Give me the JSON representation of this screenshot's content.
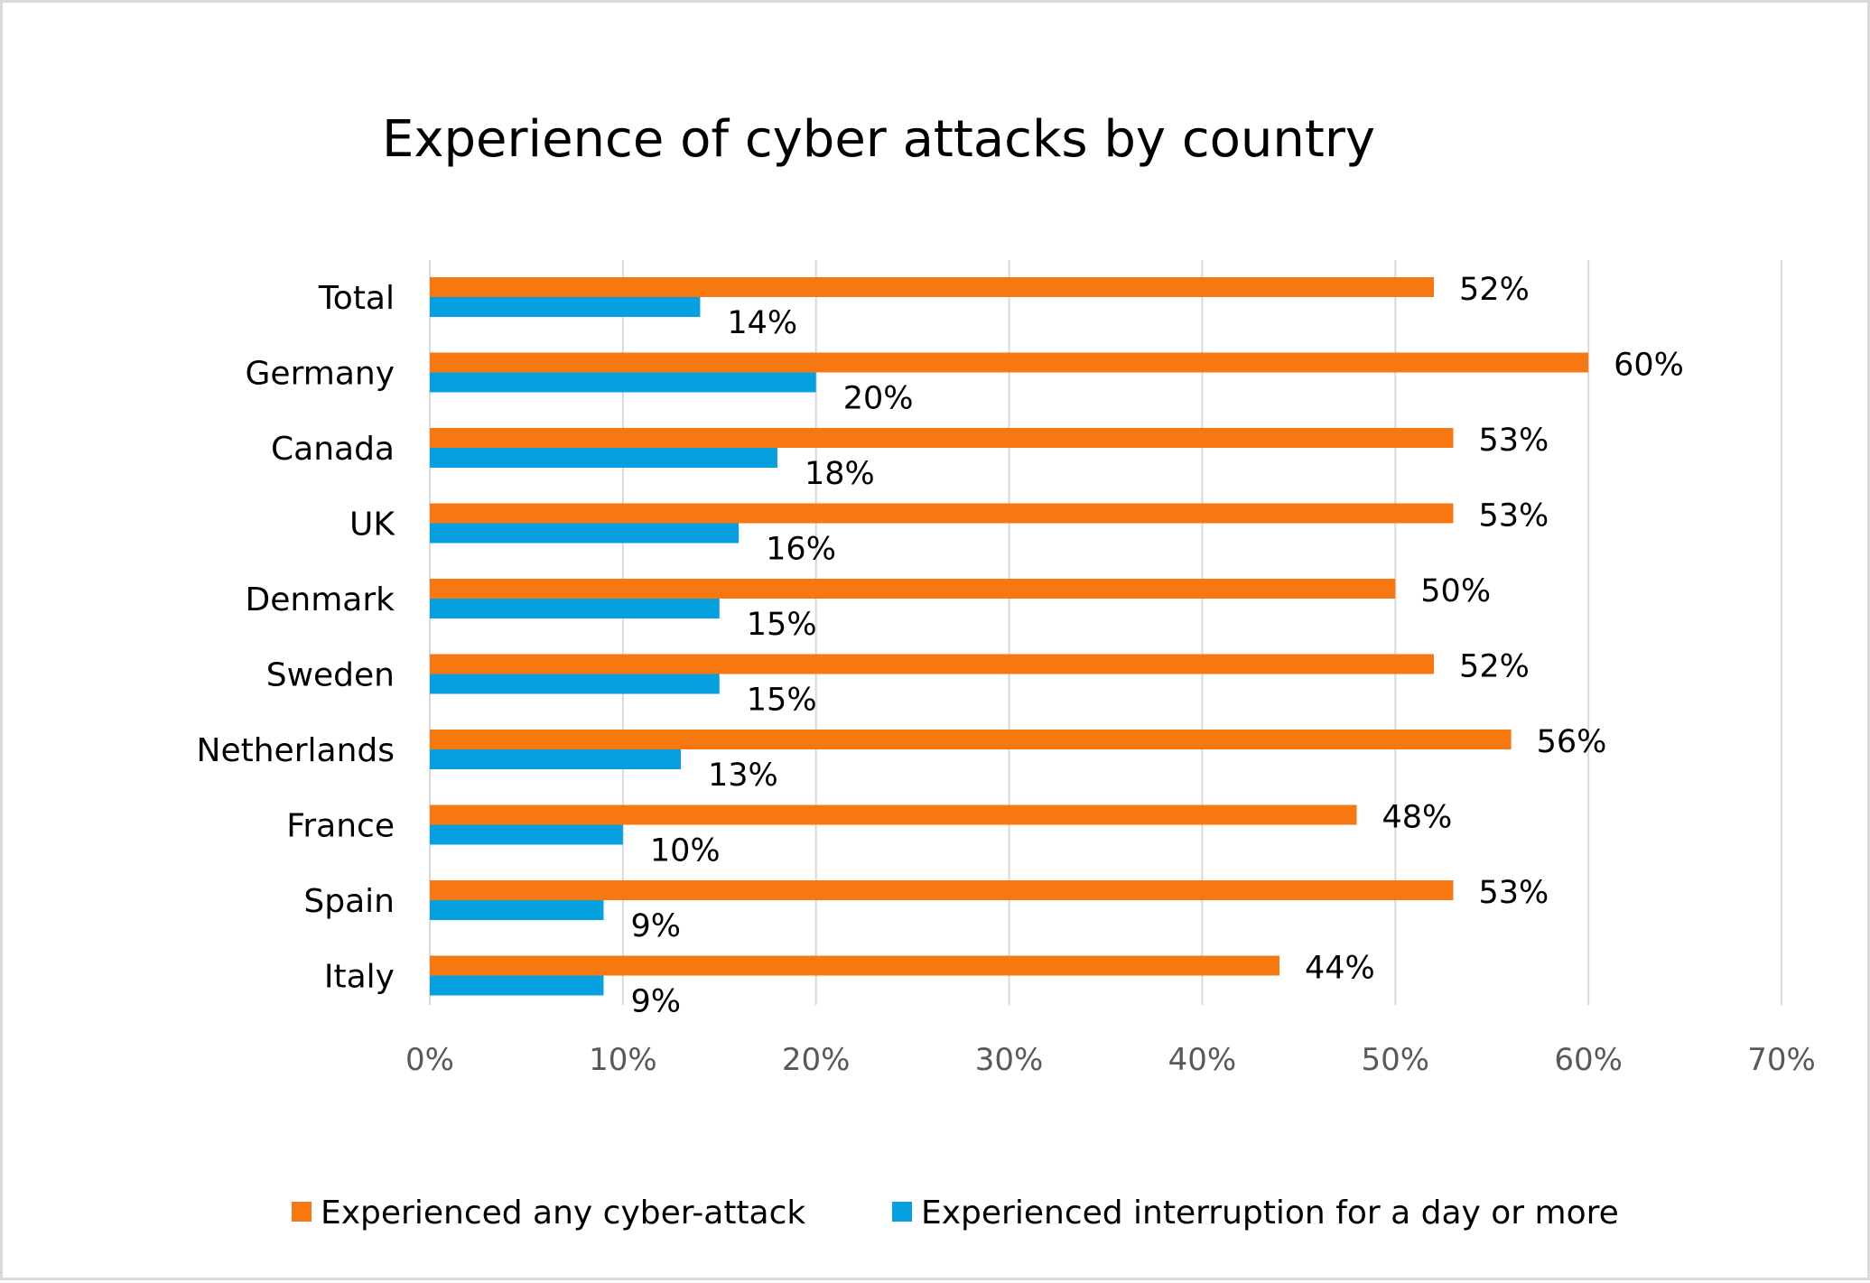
{
  "chart_data": {
    "type": "bar",
    "orientation": "horizontal",
    "title": "Experience of cyber attacks by country",
    "xlabel": "",
    "ylabel": "",
    "xlim": [
      0,
      70
    ],
    "x_ticks": [
      "0%",
      "10%",
      "20%",
      "30%",
      "40%",
      "50%",
      "60%",
      "70%"
    ],
    "categories": [
      "Total",
      "Germany",
      "Canada",
      "UK",
      "Denmark",
      "Sweden",
      "Netherlands",
      "France",
      "Spain",
      "Italy"
    ],
    "series": [
      {
        "name": "Experienced any cyber-attack",
        "color": "#f77811",
        "values": [
          52,
          60,
          53,
          53,
          50,
          52,
          56,
          48,
          53,
          44
        ],
        "labels": [
          "52%",
          "60%",
          "53%",
          "53%",
          "50%",
          "52%",
          "56%",
          "48%",
          "53%",
          "44%"
        ]
      },
      {
        "name": "Experienced interruption for a day or more",
        "color": "#069fe0",
        "values": [
          14,
          20,
          18,
          16,
          15,
          15,
          13,
          10,
          9,
          9
        ],
        "labels": [
          "14%",
          "20%",
          "18%",
          "16%",
          "15%",
          "15%",
          "13%",
          "10%",
          "9%",
          "9%"
        ]
      }
    ],
    "grid": true,
    "gridline_color": "#d9d9d9",
    "legend_position": "bottom"
  }
}
